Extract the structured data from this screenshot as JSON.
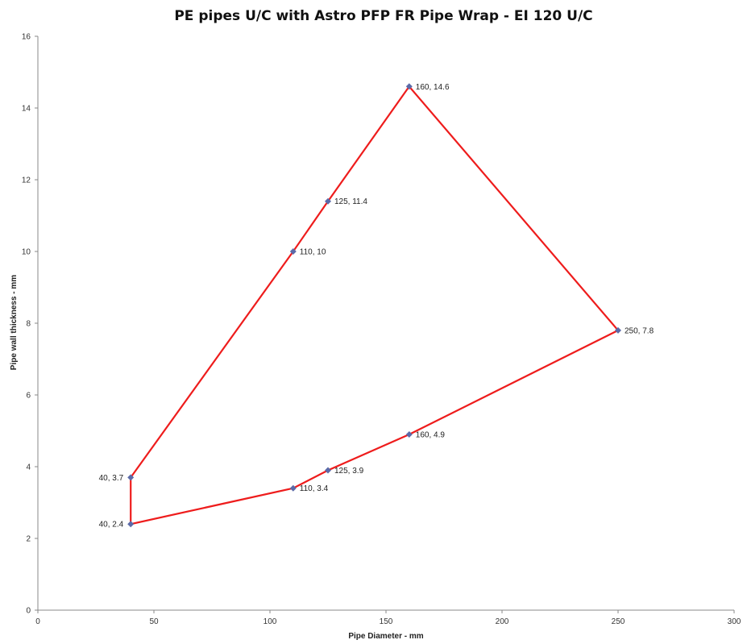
{
  "chart_data": {
    "type": "scatter",
    "title": "PE pipes U/C with  Astro PFP FR Pipe Wrap  - EI 120 U/C",
    "xlabel": "Pipe Diameter - mm",
    "ylabel": "Pipe wall thickness - mm",
    "xlim": [
      0,
      300
    ],
    "ylim": [
      0,
      16
    ],
    "x_ticks": [
      0,
      50,
      100,
      150,
      200,
      250,
      300
    ],
    "y_ticks": [
      0,
      2,
      4,
      6,
      8,
      10,
      12,
      14,
      16
    ],
    "grid": false,
    "legend": "none",
    "series": [
      {
        "points": [
          {
            "x": 40,
            "y": 3.7,
            "label": "40, 3.7"
          },
          {
            "x": 110,
            "y": 10,
            "label": "110, 10"
          },
          {
            "x": 125,
            "y": 11.4,
            "label": "125, 11.4"
          },
          {
            "x": 160,
            "y": 14.6,
            "label": "160, 14.6"
          },
          {
            "x": 250,
            "y": 7.8,
            "label": "250, 7.8"
          },
          {
            "x": 160,
            "y": 4.9,
            "label": "160, 4.9"
          },
          {
            "x": 125,
            "y": 3.9,
            "label": "125, 3.9"
          },
          {
            "x": 110,
            "y": 3.4,
            "label": "110, 3.4"
          },
          {
            "x": 40,
            "y": 2.4,
            "label": "40, 2.4"
          },
          {
            "x": 40,
            "y": 3.7
          }
        ],
        "line_color": "#ee1c1c",
        "marker_color": "#5b6aa8"
      }
    ]
  }
}
